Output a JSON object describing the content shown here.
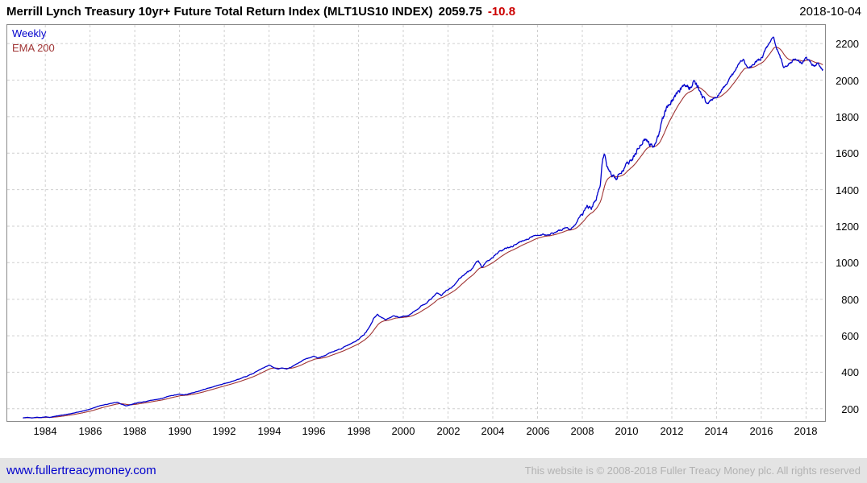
{
  "header": {
    "title": "Merrill Lynch Treasury 10yr+ Future Total Return Index (MLT1US10 INDEX)",
    "last_value": "2059.75",
    "change": "-10.8",
    "date": "2018-10-04"
  },
  "legend": [
    {
      "label": "Weekly",
      "color": "#0000cc"
    },
    {
      "label": "EMA 200",
      "color": "#a03434"
    }
  ],
  "footer": {
    "link": "www.fullertreacymoney.com",
    "copyright": "This website is © 2008-2018 Fuller Treacy Money plc. All rights reserved"
  },
  "colors": {
    "price_line": "#0000cc",
    "ema_line": "#a03434",
    "negative_change": "#cc0000",
    "link_blue": "#0000cc",
    "gridline": "#cfcfcf"
  },
  "chart_data": {
    "type": "line",
    "title": "Merrill Lynch Treasury 10yr+ Future Total Return Index (MLT1US10 INDEX)",
    "interval": "Weekly",
    "ema_period": 200,
    "last_value": 2059.75,
    "last_change": -10.8,
    "x_axis": {
      "min": 1982.3,
      "max": 2018.85,
      "ticks": [
        1984,
        1986,
        1988,
        1990,
        1992,
        1994,
        1996,
        1998,
        2000,
        2002,
        2004,
        2006,
        2008,
        2010,
        2012,
        2014,
        2016,
        2018
      ]
    },
    "y_axis": {
      "min": 133,
      "max": 2302,
      "ticks": [
        200,
        400,
        600,
        800,
        1000,
        1200,
        1400,
        1600,
        1800,
        2000,
        2200
      ]
    },
    "grid": "dashed",
    "legend_position": "top-left",
    "series": [
      {
        "name": "Weekly",
        "color": "#0000cc",
        "points": [
          [
            1983.0,
            150
          ],
          [
            1983.2,
            153
          ],
          [
            1983.4,
            150
          ],
          [
            1983.6,
            154
          ],
          [
            1983.8,
            152
          ],
          [
            1984.0,
            156
          ],
          [
            1984.2,
            153
          ],
          [
            1984.4,
            158
          ],
          [
            1984.6,
            162
          ],
          [
            1984.8,
            166
          ],
          [
            1985.0,
            170
          ],
          [
            1985.25,
            176
          ],
          [
            1985.5,
            183
          ],
          [
            1985.75,
            190
          ],
          [
            1986.0,
            198
          ],
          [
            1986.25,
            210
          ],
          [
            1986.5,
            218
          ],
          [
            1986.75,
            224
          ],
          [
            1987.0,
            230
          ],
          [
            1987.2,
            236
          ],
          [
            1987.4,
            226
          ],
          [
            1987.6,
            216
          ],
          [
            1987.8,
            222
          ],
          [
            1988.0,
            230
          ],
          [
            1988.25,
            236
          ],
          [
            1988.5,
            240
          ],
          [
            1988.75,
            246
          ],
          [
            1989.0,
            250
          ],
          [
            1989.25,
            257
          ],
          [
            1989.5,
            268
          ],
          [
            1989.75,
            275
          ],
          [
            1990.0,
            280
          ],
          [
            1990.2,
            276
          ],
          [
            1990.4,
            282
          ],
          [
            1990.6,
            288
          ],
          [
            1990.8,
            294
          ],
          [
            1991.0,
            302
          ],
          [
            1991.25,
            312
          ],
          [
            1991.5,
            320
          ],
          [
            1991.75,
            330
          ],
          [
            1992.0,
            338
          ],
          [
            1992.25,
            346
          ],
          [
            1992.5,
            356
          ],
          [
            1992.75,
            366
          ],
          [
            1993.0,
            376
          ],
          [
            1993.25,
            392
          ],
          [
            1993.5,
            408
          ],
          [
            1993.75,
            424
          ],
          [
            1994.0,
            438
          ],
          [
            1994.2,
            428
          ],
          [
            1994.4,
            418
          ],
          [
            1994.6,
            424
          ],
          [
            1994.8,
            416
          ],
          [
            1995.0,
            428
          ],
          [
            1995.25,
            446
          ],
          [
            1995.5,
            464
          ],
          [
            1995.75,
            478
          ],
          [
            1996.0,
            490
          ],
          [
            1996.2,
            478
          ],
          [
            1996.4,
            486
          ],
          [
            1996.6,
            498
          ],
          [
            1996.8,
            510
          ],
          [
            1997.0,
            518
          ],
          [
            1997.25,
            532
          ],
          [
            1997.5,
            548
          ],
          [
            1997.75,
            562
          ],
          [
            1998.0,
            582
          ],
          [
            1998.25,
            605
          ],
          [
            1998.5,
            650
          ],
          [
            1998.7,
            700
          ],
          [
            1998.85,
            715
          ],
          [
            1999.0,
            702
          ],
          [
            1999.2,
            688
          ],
          [
            1999.4,
            700
          ],
          [
            1999.6,
            708
          ],
          [
            1999.8,
            698
          ],
          [
            2000.0,
            705
          ],
          [
            2000.25,
            715
          ],
          [
            2000.5,
            732
          ],
          [
            2000.75,
            755
          ],
          [
            2001.0,
            778
          ],
          [
            2001.25,
            802
          ],
          [
            2001.5,
            832
          ],
          [
            2001.7,
            818
          ],
          [
            2001.85,
            840
          ],
          [
            2002.0,
            852
          ],
          [
            2002.25,
            872
          ],
          [
            2002.5,
            912
          ],
          [
            2002.75,
            940
          ],
          [
            2003.0,
            958
          ],
          [
            2003.2,
            988
          ],
          [
            2003.35,
            1012
          ],
          [
            2003.5,
            972
          ],
          [
            2003.75,
            1002
          ],
          [
            2004.0,
            1032
          ],
          [
            2004.25,
            1056
          ],
          [
            2004.5,
            1072
          ],
          [
            2004.75,
            1086
          ],
          [
            2005.0,
            1100
          ],
          [
            2005.25,
            1116
          ],
          [
            2005.5,
            1130
          ],
          [
            2005.75,
            1142
          ],
          [
            2006.0,
            1152
          ],
          [
            2006.25,
            1158
          ],
          [
            2006.5,
            1150
          ],
          [
            2006.75,
            1162
          ],
          [
            2007.0,
            1176
          ],
          [
            2007.25,
            1192
          ],
          [
            2007.5,
            1182
          ],
          [
            2007.75,
            1228
          ],
          [
            2008.0,
            1276
          ],
          [
            2008.2,
            1318
          ],
          [
            2008.4,
            1296
          ],
          [
            2008.6,
            1340
          ],
          [
            2008.8,
            1420
          ],
          [
            2008.92,
            1580
          ],
          [
            2009.0,
            1605
          ],
          [
            2009.1,
            1520
          ],
          [
            2009.3,
            1475
          ],
          [
            2009.5,
            1458
          ],
          [
            2009.75,
            1502
          ],
          [
            2010.0,
            1545
          ],
          [
            2010.25,
            1565
          ],
          [
            2010.5,
            1625
          ],
          [
            2010.75,
            1685
          ],
          [
            2011.0,
            1655
          ],
          [
            2011.2,
            1640
          ],
          [
            2011.4,
            1700
          ],
          [
            2011.6,
            1790
          ],
          [
            2011.8,
            1855
          ],
          [
            2012.0,
            1885
          ],
          [
            2012.25,
            1915
          ],
          [
            2012.5,
            1965
          ],
          [
            2012.65,
            1988
          ],
          [
            2012.8,
            1968
          ],
          [
            2013.0,
            1992
          ],
          [
            2013.2,
            1958
          ],
          [
            2013.4,
            1898
          ],
          [
            2013.6,
            1868
          ],
          [
            2013.8,
            1892
          ],
          [
            2014.0,
            1912
          ],
          [
            2014.25,
            1952
          ],
          [
            2014.5,
            1992
          ],
          [
            2014.75,
            2032
          ],
          [
            2015.0,
            2092
          ],
          [
            2015.2,
            2112
          ],
          [
            2015.4,
            2058
          ],
          [
            2015.6,
            2082
          ],
          [
            2015.8,
            2102
          ],
          [
            2016.0,
            2122
          ],
          [
            2016.2,
            2162
          ],
          [
            2016.4,
            2215
          ],
          [
            2016.55,
            2232
          ],
          [
            2016.7,
            2180
          ],
          [
            2016.85,
            2120
          ],
          [
            2017.0,
            2065
          ],
          [
            2017.2,
            2092
          ],
          [
            2017.4,
            2112
          ],
          [
            2017.6,
            2120
          ],
          [
            2017.8,
            2098
          ],
          [
            2018.0,
            2122
          ],
          [
            2018.2,
            2088
          ],
          [
            2018.4,
            2078
          ],
          [
            2018.55,
            2092
          ],
          [
            2018.75,
            2060
          ]
        ]
      },
      {
        "name": "EMA 200",
        "color": "#a03434",
        "derived": "ema_of_weekly_series"
      }
    ]
  }
}
